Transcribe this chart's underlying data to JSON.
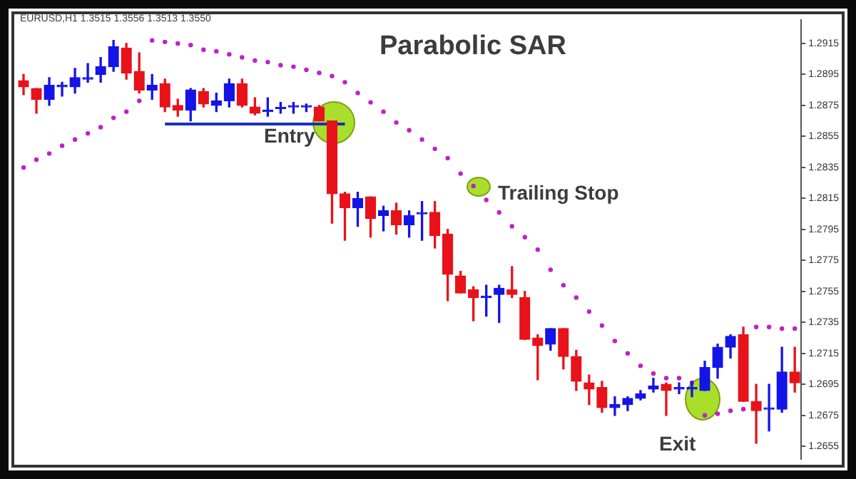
{
  "chart_data": {
    "type": "candlestick",
    "title": "Parabolic SAR",
    "annotations": [
      "EURUSD,H1 1.3515 1.3556 1.3513 1.3550",
      "Entry",
      "Trailing Stop",
      "Exit"
    ],
    "categories": [
      null,
      null,
      null,
      null,
      null,
      null,
      null,
      null,
      null,
      null,
      null,
      null,
      null,
      null,
      null,
      null,
      null,
      null,
      null,
      null,
      null,
      null,
      null,
      null,
      null,
      null,
      null,
      null,
      null,
      null,
      null,
      null,
      null,
      null,
      null,
      null,
      null,
      null,
      null,
      null,
      null,
      null,
      null,
      null,
      null,
      null,
      null,
      null,
      null,
      null,
      null,
      null,
      null,
      null,
      null,
      null,
      null,
      null,
      null,
      null,
      null
    ],
    "ohlc": [
      [
        1.2891,
        1.2895,
        1.2882,
        1.2887
      ],
      [
        1.2886,
        1.2886,
        1.287,
        1.2879
      ],
      [
        1.2879,
        1.2893,
        1.2875,
        1.2888
      ],
      [
        1.2887,
        1.289,
        1.2881,
        1.2888
      ],
      [
        1.2887,
        1.2899,
        1.2883,
        1.2893
      ],
      [
        1.2892,
        1.2902,
        1.289,
        1.2893
      ],
      [
        1.2895,
        1.2906,
        1.289,
        1.29
      ],
      [
        1.29,
        1.2917,
        1.2897,
        1.2913
      ],
      [
        1.2912,
        1.2915,
        1.2892,
        1.2896
      ],
      [
        1.2897,
        1.2909,
        1.2883,
        1.2885
      ],
      [
        1.2885,
        1.2895,
        1.2879,
        1.2888
      ],
      [
        1.2889,
        1.2892,
        1.2871,
        1.2874
      ],
      [
        1.2875,
        1.2879,
        1.2868,
        1.2872
      ],
      [
        1.2872,
        1.2886,
        1.2865,
        1.2885
      ],
      [
        1.2884,
        1.2886,
        1.2874,
        1.2876
      ],
      [
        1.2875,
        1.2883,
        1.2871,
        1.2878
      ],
      [
        1.2878,
        1.2892,
        1.2874,
        1.2889
      ],
      [
        1.2889,
        1.2892,
        1.2874,
        1.2875
      ],
      [
        1.2874,
        1.288,
        1.2869,
        1.287
      ],
      [
        1.2871,
        1.288,
        1.2868,
        1.2872
      ],
      [
        1.2873,
        1.2877,
        1.287,
        1.2873
      ],
      [
        1.2874,
        1.2877,
        1.287,
        1.2874
      ],
      [
        1.2874,
        1.2876,
        1.2871,
        1.2874
      ],
      [
        1.2874,
        1.2875,
        1.2865,
        1.2865
      ],
      [
        1.2865,
        1.2865,
        1.2799,
        1.2818
      ],
      [
        1.2818,
        1.2819,
        1.2788,
        1.2809
      ],
      [
        1.2809,
        1.2819,
        1.2797,
        1.2815
      ],
      [
        1.2816,
        1.2816,
        1.279,
        1.2802
      ],
      [
        1.2804,
        1.281,
        1.2794,
        1.2807
      ],
      [
        1.2807,
        1.2812,
        1.2792,
        1.2798
      ],
      [
        1.2798,
        1.2807,
        1.279,
        1.2804
      ],
      [
        1.2805,
        1.2813,
        1.2788,
        1.2805
      ],
      [
        1.2806,
        1.2813,
        1.2783,
        1.2791
      ],
      [
        1.2792,
        1.2795,
        1.2749,
        1.2766
      ],
      [
        1.2765,
        1.2768,
        1.2754,
        1.2754
      ],
      [
        1.2756,
        1.2758,
        1.2736,
        1.2751
      ],
      [
        1.2751,
        1.2759,
        1.2739,
        1.2751
      ],
      [
        1.2753,
        1.2759,
        1.2735,
        1.2757
      ],
      [
        1.2756,
        1.2771,
        1.2751,
        1.2753
      ],
      [
        1.2751,
        1.2755,
        1.2724,
        1.2724
      ],
      [
        1.2725,
        1.2727,
        1.2698,
        1.272
      ],
      [
        1.2721,
        1.2731,
        1.2717,
        1.2731
      ],
      [
        1.2731,
        1.2731,
        1.2705,
        1.2713
      ],
      [
        1.2713,
        1.2717,
        1.2691,
        1.2697
      ],
      [
        1.2696,
        1.2701,
        1.2682,
        1.2692
      ],
      [
        1.2693,
        1.2697,
        1.2677,
        1.268
      ],
      [
        1.268,
        1.2687,
        1.2675,
        1.2682
      ],
      [
        1.2682,
        1.2687,
        1.2678,
        1.2686
      ],
      [
        1.2686,
        1.2691,
        1.2685,
        1.2689
      ],
      [
        1.2692,
        1.2699,
        1.269,
        1.2694
      ],
      [
        1.2695,
        1.2696,
        1.2675,
        1.2691
      ],
      [
        1.2692,
        1.2696,
        1.2689,
        1.2692
      ],
      [
        1.2692,
        1.2697,
        1.2687,
        1.2692
      ],
      [
        1.2691,
        1.271,
        1.2691,
        1.2706
      ],
      [
        1.2706,
        1.2721,
        1.2699,
        1.2719
      ],
      [
        1.2719,
        1.2727,
        1.2712,
        1.2726
      ],
      [
        1.2727,
        1.2732,
        1.2684,
        1.2684
      ],
      [
        1.2684,
        1.2695,
        1.2657,
        1.2678
      ],
      [
        1.2679,
        1.2695,
        1.2665,
        1.2679
      ],
      [
        1.2679,
        1.2719,
        1.2677,
        1.2703
      ],
      [
        1.2703,
        1.2719,
        1.269,
        1.2696
      ]
    ],
    "colors": [
      "#e8121a",
      "#e8121a",
      "#1414e6",
      "#1414e6",
      "#1414e6",
      "#1414e6",
      "#1414e6",
      "#1414e6",
      "#e8121a",
      "#e8121a",
      "#1414e6",
      "#e8121a",
      "#e8121a",
      "#1414e6",
      "#e8121a",
      "#1414e6",
      "#1414e6",
      "#e8121a",
      "#e8121a",
      "#1414e6",
      "#1414e6",
      "#1414e6",
      "#1414e6",
      "#e8121a",
      "#e8121a",
      "#e8121a",
      "#1414e6",
      "#e8121a",
      "#1414e6",
      "#e8121a",
      "#1414e6",
      "#1414e6",
      "#e8121a",
      "#e8121a",
      "#e8121a",
      "#e8121a",
      "#1414e6",
      "#1414e6",
      "#e8121a",
      "#e8121a",
      "#e8121a",
      "#1414e6",
      "#e8121a",
      "#e8121a",
      "#e8121a",
      "#e8121a",
      "#1414e6",
      "#1414e6",
      "#1414e6",
      "#1414e6",
      "#e8121a",
      "#1414e6",
      "#1414e6",
      "#1414e6",
      "#1414e6",
      "#1414e6",
      "#e8121a",
      "#e8121a",
      "#1414e6",
      "#1414e6",
      "#e8121a"
    ],
    "series": [
      {
        "type": "scatter",
        "color": "#c020c8",
        "marker": "circle",
        "values": [
          1.2835,
          1.284,
          1.2844,
          1.2849,
          1.2853,
          1.2857,
          1.2861,
          1.2867,
          1.2871,
          1.2878,
          1.2917,
          1.2916,
          1.2915,
          1.2914,
          1.2911,
          1.291,
          1.2908,
          1.2906,
          1.2904,
          1.2903,
          1.2901,
          1.29,
          1.2898,
          1.2896,
          1.2894,
          1.289,
          1.2883,
          1.2877,
          1.2871,
          1.2864,
          1.2859,
          1.2853,
          1.2847,
          1.2841,
          1.2831,
          1.2823,
          1.2814,
          1.2806,
          1.2797,
          1.279,
          1.2782,
          1.2769,
          1.2759,
          1.2751,
          1.2742,
          1.2733,
          1.2723,
          1.2715,
          1.2707,
          1.2702,
          1.2699,
          1.2699,
          1.2696,
          1.2675,
          1.2676,
          1.2678,
          1.2679,
          1.2732,
          1.2732,
          1.2731,
          1.2731
        ]
      },
      {
        "type": "line",
        "color": "#1f2fb8",
        "line_style": "solid",
        "values": [
          null,
          null,
          null,
          null,
          null,
          null,
          null,
          null,
          null,
          null,
          null,
          1.2863,
          1.2863,
          1.2863,
          1.2863,
          1.2863,
          1.2863,
          1.2863,
          1.2863,
          1.2863,
          1.2863,
          1.2863,
          1.2863,
          1.2863,
          1.2863,
          1.2863,
          null,
          null,
          null,
          null,
          null,
          null,
          null,
          null,
          null,
          null,
          null,
          null,
          null,
          null,
          null,
          null,
          null,
          null,
          null,
          null,
          null,
          null,
          null,
          null,
          null,
          null,
          null,
          null,
          null,
          null,
          null,
          null,
          null,
          null,
          null
        ]
      }
    ],
    "ylim": [
      1.2647,
      1.293
    ],
    "yticks": [
      1.2655,
      1.2675,
      1.2695,
      1.2715,
      1.2735,
      1.2755,
      1.2775,
      1.2795,
      1.2815,
      1.2835,
      1.2855,
      1.2875,
      1.2895,
      1.2915
    ],
    "tick_labels": "y"
  }
}
